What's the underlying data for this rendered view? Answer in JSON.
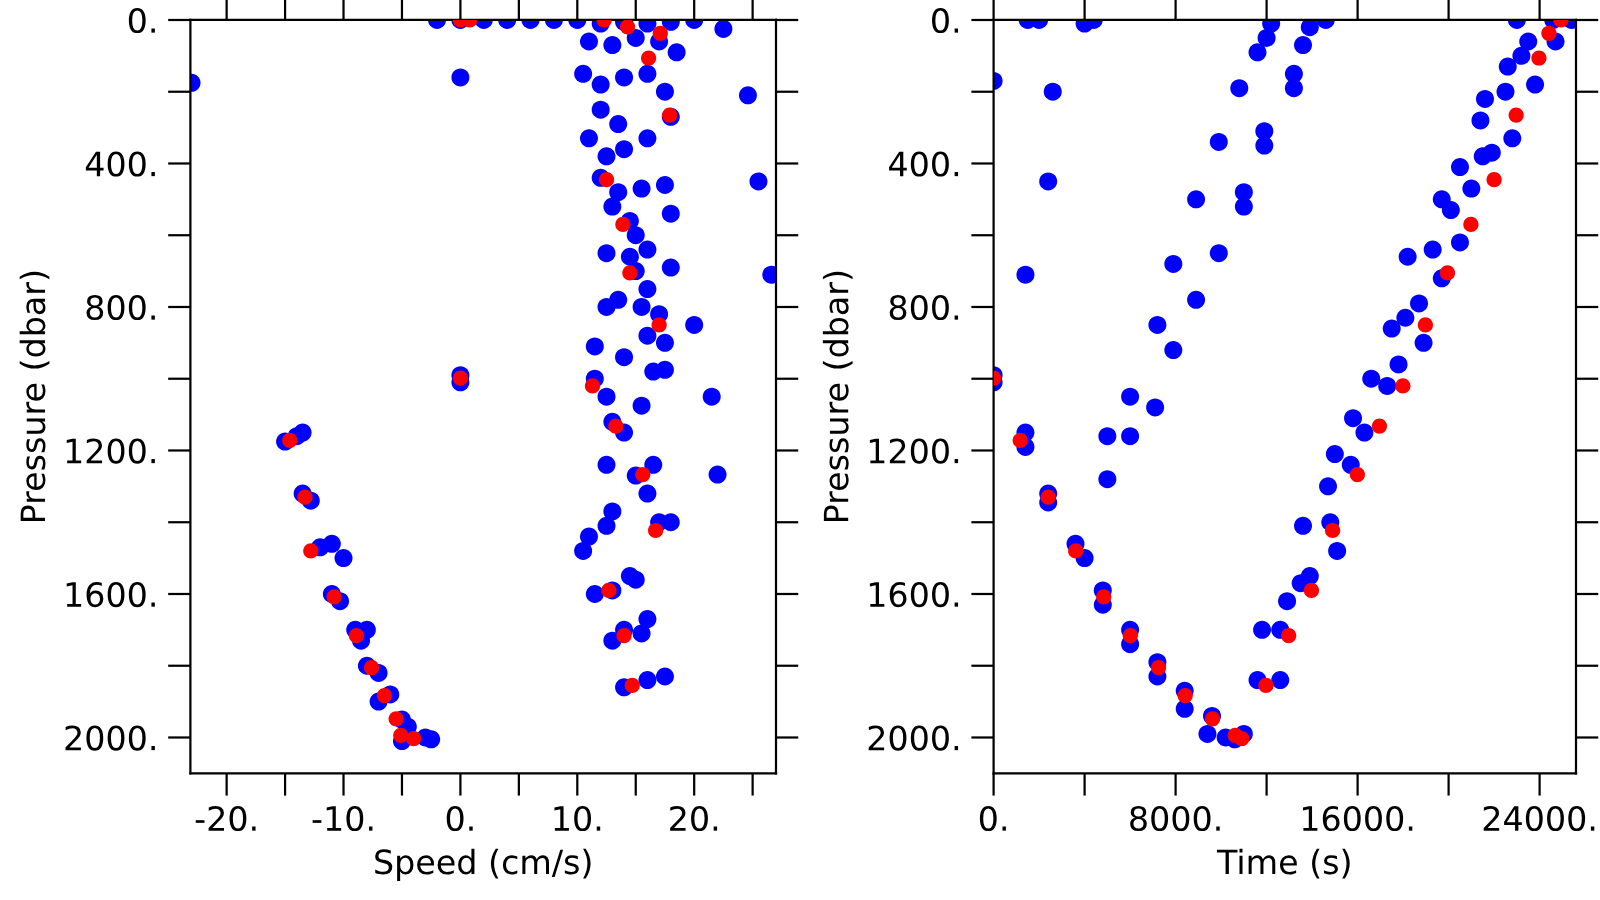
{
  "chart_data": [
    {
      "type": "scatter",
      "xlabel": "Speed (cm/s)",
      "ylabel": "Pressure (dbar)",
      "marker": "circle",
      "grid": false,
      "xlim": [
        -23.1,
        27.0
      ],
      "ylim": [
        2100,
        0
      ],
      "xticks": [
        {
          "value": -20,
          "label": "-20."
        },
        {
          "value": -15,
          "label": null
        },
        {
          "value": -10,
          "label": "-10."
        },
        {
          "value": -5,
          "label": null
        },
        {
          "value": 0,
          "label": "0."
        },
        {
          "value": 5,
          "label": null
        },
        {
          "value": 10,
          "label": "10."
        },
        {
          "value": 15,
          "label": null
        },
        {
          "value": 20,
          "label": "20."
        },
        {
          "value": 25,
          "label": null
        }
      ],
      "yticks": [
        {
          "value": 0,
          "label": "0."
        },
        {
          "value": 200,
          "label": null
        },
        {
          "value": 400,
          "label": "400."
        },
        {
          "value": 600,
          "label": null
        },
        {
          "value": 800,
          "label": "800."
        },
        {
          "value": 1000,
          "label": null
        },
        {
          "value": 1200,
          "label": "1200."
        },
        {
          "value": 1400,
          "label": null
        },
        {
          "value": 1600,
          "label": "1600."
        },
        {
          "value": 1800,
          "label": null
        },
        {
          "value": 2000,
          "label": "2000."
        }
      ],
      "series": [
        {
          "color": "#0000ff",
          "x": [
            -2,
            0,
            2,
            4,
            6,
            8,
            10,
            12,
            14,
            16,
            18,
            20,
            22.5,
            11,
            13,
            15,
            17,
            18.5,
            10.5,
            12,
            14,
            16,
            17.5,
            12,
            13.5,
            16,
            18,
            11,
            12.5,
            14,
            12,
            13.5,
            17.5,
            15.5,
            13,
            14.5,
            15,
            18,
            12.5,
            14.5,
            16,
            18,
            15,
            16,
            13.5,
            15.5,
            17,
            12.5,
            16,
            17.5,
            11.5,
            14,
            16.5,
            17.5,
            11.5,
            12.5,
            15.5,
            13,
            14,
            12.5,
            15,
            16.5,
            16,
            13,
            12.5,
            11,
            10.5,
            17,
            18,
            14.5,
            11.5,
            13,
            15,
            14,
            16,
            13,
            15.5,
            14,
            16,
            17.5,
            -23.0,
            24.6,
            25.5,
            26.6,
            20,
            21.5,
            22,
            0,
            0,
            0,
            -15,
            -14,
            -13.5,
            -13.5,
            -12.8,
            -12,
            -11,
            -10,
            -11,
            -10.3,
            -9,
            -8.5,
            -8,
            -8,
            -7,
            -6,
            -7,
            -5,
            -4.5,
            -3,
            -2.5,
            -5
          ],
          "values": [
            0,
            0,
            0,
            0,
            0,
            0,
            0,
            10,
            5,
            10,
            5,
            0,
            25,
            60,
            70,
            50,
            60,
            90,
            150,
            180,
            160,
            150,
            200,
            250,
            290,
            330,
            270,
            330,
            380,
            360,
            440,
            480,
            460,
            470,
            520,
            560,
            600,
            540,
            650,
            660,
            640,
            690,
            700,
            750,
            780,
            800,
            820,
            800,
            880,
            900,
            910,
            940,
            980,
            975,
            1000,
            1050,
            1075,
            1120,
            1150,
            1240,
            1270,
            1240,
            1320,
            1370,
            1410,
            1440,
            1480,
            1400,
            1400,
            1550,
            1600,
            1590,
            1560,
            1700,
            1670,
            1730,
            1710,
            1860,
            1840,
            1830,
            175,
            210,
            450,
            710,
            850,
            1050,
            1267,
            160,
            990,
            1010,
            1175,
            1160,
            1150,
            1320,
            1340,
            1470,
            1460,
            1500,
            1600,
            1620,
            1700,
            1730,
            1700,
            1800,
            1820,
            1880,
            1900,
            1950,
            1970,
            2000,
            2005,
            2010
          ]
        },
        {
          "color": "#ff0000",
          "x": [
            0,
            0.8,
            12.3,
            14.3,
            17.1,
            16.1,
            17.9,
            12.5,
            13.9,
            14.5,
            17.0,
            11.3,
            13.3,
            15.6,
            16.7,
            12.7,
            14.0,
            14.7,
            0,
            -14.6,
            -13.3,
            -12.8,
            -10.8,
            -8.9,
            -7.6,
            -6.5,
            -5.5,
            -5.1,
            -4.0
          ],
          "values": [
            0,
            0,
            0,
            19,
            37,
            106,
            265,
            445,
            570,
            705,
            850,
            1020,
            1132,
            1267,
            1423,
            1590,
            1716,
            1855,
            998,
            1172,
            1330,
            1480,
            1608,
            1716,
            1805,
            1883,
            1948,
            1994,
            2003
          ]
        }
      ]
    },
    {
      "type": "scatter",
      "xlabel": "Time (s)",
      "ylabel": "Pressure (dbar)",
      "marker": "circle",
      "grid": false,
      "xlim": [
        0,
        25600
      ],
      "ylim": [
        2100,
        0
      ],
      "xticks": [
        {
          "value": 0,
          "label": "0."
        },
        {
          "value": 4000,
          "label": null
        },
        {
          "value": 8000,
          "label": "8000."
        },
        {
          "value": 12000,
          "label": null
        },
        {
          "value": 16000,
          "label": "16000."
        },
        {
          "value": 20000,
          "label": null
        },
        {
          "value": 24000,
          "label": "24000."
        }
      ],
      "yticks": [
        {
          "value": 0,
          "label": "0."
        },
        {
          "value": 200,
          "label": null
        },
        {
          "value": 400,
          "label": "400."
        },
        {
          "value": 600,
          "label": null
        },
        {
          "value": 800,
          "label": "800."
        },
        {
          "value": 1000,
          "label": null
        },
        {
          "value": 1200,
          "label": "1200."
        },
        {
          "value": 1400,
          "label": null
        },
        {
          "value": 1600,
          "label": "1600."
        },
        {
          "value": 1800,
          "label": null
        },
        {
          "value": 2000,
          "label": "2000."
        }
      ],
      "series": [
        {
          "color": "#0000ff",
          "x": [
            1500,
            2000,
            4000,
            4400,
            12000,
            12200,
            13600,
            13900,
            14600,
            11600,
            13200,
            13200,
            10800,
            11900,
            11900,
            9900,
            11000,
            11000,
            8900,
            9900,
            7900,
            8900,
            7200,
            7900,
            6000,
            7100,
            5000,
            6000,
            5000,
            0,
            2600,
            2400,
            1400,
            0,
            0,
            1400,
            1400,
            2400,
            2400,
            3600,
            4000,
            4800,
            4800,
            6000,
            6000,
            7200,
            7200,
            8400,
            8400,
            9600,
            9400,
            10200,
            11000,
            10600,
            11600,
            12600,
            11800,
            12600,
            12900,
            13500,
            13900,
            13600,
            14800,
            15100,
            14700,
            15700,
            15000,
            16300,
            15800,
            17300,
            16600,
            17800,
            17500,
            18700,
            18100,
            18900,
            19300,
            18200,
            19700,
            20100,
            19700,
            20500,
            20500,
            21500,
            21000,
            21900,
            21400,
            22500,
            21600,
            22800,
            22600,
            23500,
            23800,
            24600,
            23000,
            23200,
            24700,
            25400
          ],
          "values": [
            0,
            0,
            10,
            0,
            50,
            10,
            70,
            20,
            0,
            90,
            150,
            190,
            190,
            310,
            350,
            340,
            480,
            520,
            500,
            650,
            680,
            780,
            850,
            920,
            1050,
            1080,
            1160,
            1160,
            1280,
            170,
            200,
            450,
            710,
            990,
            1010,
            1150,
            1190,
            1320,
            1345,
            1460,
            1500,
            1590,
            1630,
            1700,
            1740,
            1790,
            1830,
            1870,
            1920,
            1940,
            1990,
            2000,
            1990,
            2005,
            1840,
            1840,
            1700,
            1700,
            1620,
            1570,
            1550,
            1410,
            1400,
            1480,
            1300,
            1240,
            1210,
            1150,
            1110,
            1020,
            1000,
            960,
            860,
            790,
            830,
            900,
            640,
            660,
            720,
            530,
            500,
            620,
            410,
            380,
            470,
            370,
            280,
            200,
            220,
            330,
            130,
            60,
            180,
            0,
            0,
            100,
            60,
            0
          ]
        },
        {
          "color": "#ff0000",
          "x": [
            0,
            1170,
            2400,
            3610,
            4840,
            6010,
            7250,
            8420,
            9620,
            10620,
            10910,
            11970,
            12970,
            13970,
            14900,
            15990,
            16960,
            17990,
            18980,
            19950,
            20980,
            22000,
            22970,
            23970,
            24410,
            24940
          ],
          "values": [
            998,
            1172,
            1330,
            1480,
            1608,
            1716,
            1805,
            1883,
            1948,
            1994,
            2003,
            1855,
            1716,
            1590,
            1423,
            1267,
            1132,
            1020,
            850,
            705,
            570,
            445,
            265,
            106,
            37,
            0
          ]
        }
      ]
    }
  ]
}
